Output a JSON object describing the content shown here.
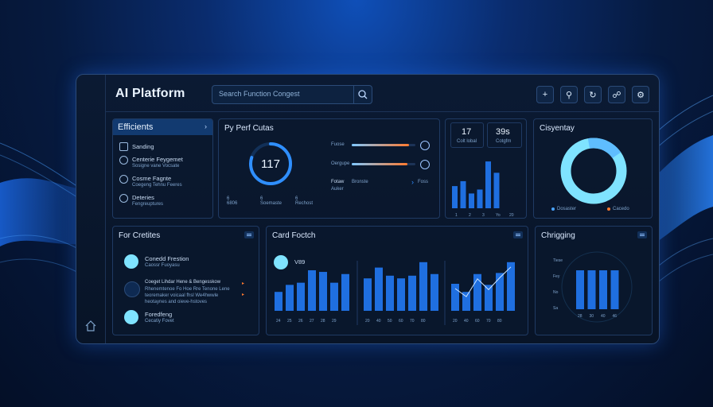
{
  "app": {
    "title": "AI Platform"
  },
  "search": {
    "placeholder": "Search Function Congest"
  },
  "sidebar": {
    "header": "Efficients",
    "items": [
      {
        "label": "Sanding",
        "sub": ""
      },
      {
        "label": "Centerie Feygemet",
        "sub": "Sosigne vane Vocsate"
      },
      {
        "label": "Cosme Fagnte",
        "sub": "Coegeng Tehnu Feeres"
      },
      {
        "label": "Deteries",
        "sub": "Fengreuptures"
      }
    ]
  },
  "card_pf": {
    "title": "Py Perf Cutas",
    "gauge": {
      "value": "117",
      "fraction": 0.8
    },
    "stats": [
      {
        "top": "6",
        "bottom": "6806"
      },
      {
        "top": "6",
        "bottom": "Soemaste"
      },
      {
        "top": "6",
        "bottom": "Rechost"
      }
    ],
    "sliders": [
      {
        "label": "Fuose",
        "level": 0.9
      },
      {
        "label": "Oergupe",
        "level": 0.88
      }
    ],
    "footer": {
      "label": "Fotaw",
      "sub": "Auker",
      "note": "Bronste",
      "link": "Foss"
    }
  },
  "card_kpi": {
    "kpis": [
      "17",
      "39s"
    ],
    "kpi_subs": [
      "Colt lobal",
      "Cotgfm"
    ],
    "bars": [
      0.45,
      0.55,
      0.3,
      0.38,
      0.95,
      0.72
    ],
    "ticks": [
      "1",
      "2",
      "3",
      "Yo",
      "20"
    ]
  },
  "card_donut": {
    "title": "Cisyentay",
    "legend": [
      {
        "label": "Dosaster",
        "color": "#49a3ff"
      },
      {
        "label": "Cacedo",
        "color": "#ff7a2f"
      }
    ]
  },
  "card_fc": {
    "title": "For Cretites",
    "items": [
      {
        "title": "Conedd Frestion",
        "sub": "Caossr Fuoyasu"
      },
      {
        "title": "Coeget Lihdar Hene & Bengesskow",
        "sub": "Rhenemtenoe Fo Hoe Rre Tenone Lene teoremaker voicaal fhsl We4hwwle heotaynes and oieve-hstoves"
      },
      {
        "title": "Foredfeng",
        "sub": "Cecatiy Fovet"
      }
    ]
  },
  "card_cf": {
    "title": "Card Foctch",
    "badge": "V89",
    "groups": [
      {
        "bars": [
          0.35,
          0.48,
          0.52,
          0.75,
          0.72,
          0.52,
          0.68
        ],
        "ticks": [
          "24",
          "25",
          "26",
          "27",
          "28",
          "29"
        ]
      },
      {
        "bars": [
          0.6,
          0.8,
          0.65,
          0.6,
          0.65,
          0.9,
          0.68
        ],
        "ticks": [
          "20",
          "40",
          "50",
          "60",
          "70",
          "80"
        ]
      },
      {
        "bars": [
          0.5,
          0.35,
          0.68,
          0.48,
          0.7,
          0.9
        ],
        "ticks": [
          "20",
          "40",
          "60",
          "70",
          "80"
        ]
      }
    ]
  },
  "card_ch": {
    "title": "Chrigging",
    "yticks": [
      "Tiese",
      "Fey",
      "No",
      "Sa"
    ],
    "bars": [
      0.72,
      0.72,
      0.72,
      0.72
    ],
    "xticks": [
      "28",
      "30",
      "40",
      "46"
    ]
  },
  "colors": {
    "accent": "#2f8fff",
    "bar": "#1f6fe0",
    "cyan": "#7fe3ff",
    "orange": "#ff7a2f"
  },
  "icons": [
    "plus-icon",
    "search-icon",
    "refresh-icon",
    "share-icon",
    "settings-icon",
    "home-icon",
    "lock-icon"
  ]
}
